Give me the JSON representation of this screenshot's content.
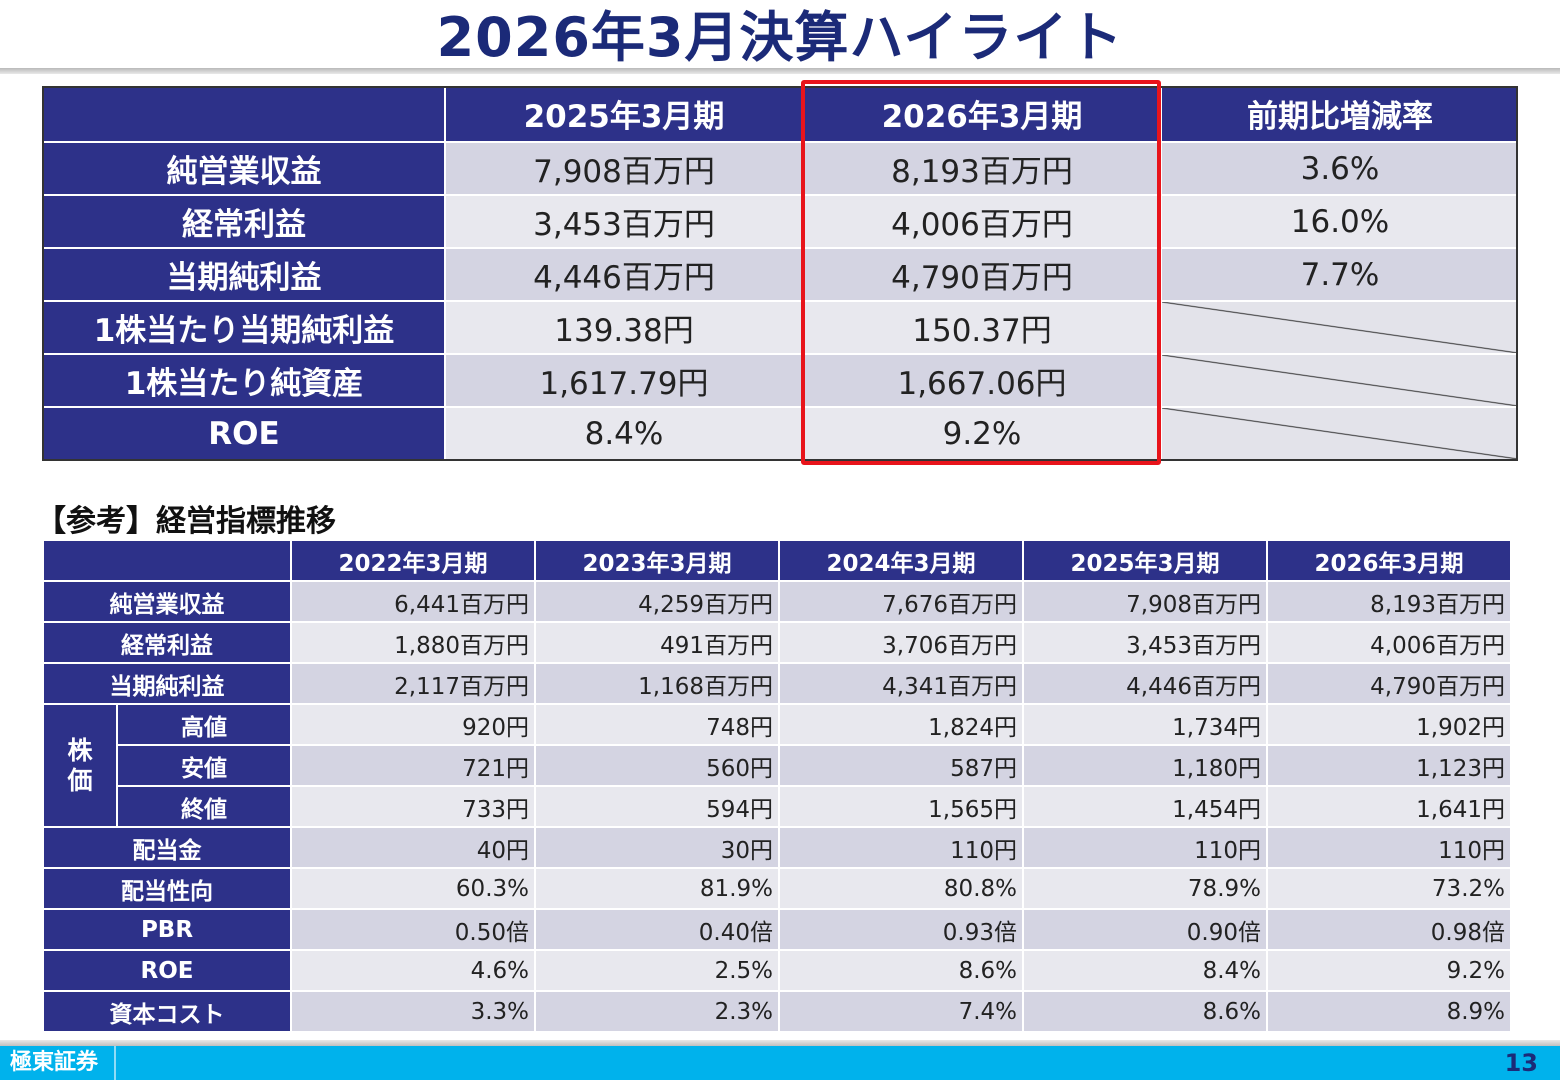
{
  "title": "2026年3月決算ハイライト",
  "highlight": {
    "headers": [
      "",
      "2025年3月期",
      "2026年3月期",
      "前期比増減率"
    ],
    "rows": [
      {
        "label": "純営業収益",
        "prev": "7,908百万円",
        "curr": "8,193百万円",
        "change": "3.6%"
      },
      {
        "label": "経常利益",
        "prev": "3,453百万円",
        "curr": "4,006百万円",
        "change": "16.0%"
      },
      {
        "label": "当期純利益",
        "prev": "4,446百万円",
        "curr": "4,790百万円",
        "change": "7.7%"
      },
      {
        "label": "1株当たり当期純利益",
        "prev": "139.38円",
        "curr": "150.37円",
        "change": ""
      },
      {
        "label": "1株当たり純資産",
        "prev": "1,617.79円",
        "curr": "1,667.06円",
        "change": ""
      },
      {
        "label": "ROE",
        "prev": "8.4%",
        "curr": "9.2%",
        "change": ""
      }
    ],
    "highlight_color": "#e8141b"
  },
  "reference": {
    "heading": "【参考】経営指標推移",
    "years": [
      "2022年3月期",
      "2023年3月期",
      "2024年3月期",
      "2025年3月期",
      "2026年3月期"
    ],
    "stock_label": "株価",
    "rows": [
      {
        "label": "純営業収益",
        "values": [
          "6,441百万円",
          "4,259百万円",
          "7,676百万円",
          "7,908百万円",
          "8,193百万円"
        ]
      },
      {
        "label": "経常利益",
        "values": [
          "1,880百万円",
          "491百万円",
          "3,706百万円",
          "3,453百万円",
          "4,006百万円"
        ]
      },
      {
        "label": "当期純利益",
        "values": [
          "2,117百万円",
          "1,168百万円",
          "4,341百万円",
          "4,446百万円",
          "4,790百万円"
        ]
      },
      {
        "label": "高値",
        "values": [
          "920円",
          "748円",
          "1,824円",
          "1,734円",
          "1,902円"
        ]
      },
      {
        "label": "安値",
        "values": [
          "721円",
          "560円",
          "587円",
          "1,180円",
          "1,123円"
        ]
      },
      {
        "label": "終値",
        "values": [
          "733円",
          "594円",
          "1,565円",
          "1,454円",
          "1,641円"
        ]
      },
      {
        "label": "配当金",
        "values": [
          "40円",
          "30円",
          "110円",
          "110円",
          "110円"
        ]
      },
      {
        "label": "配当性向",
        "values": [
          "60.3%",
          "81.9%",
          "80.8%",
          "78.9%",
          "73.2%"
        ]
      },
      {
        "label": "PBR",
        "values": [
          "0.50倍",
          "0.40倍",
          "0.93倍",
          "0.90倍",
          "0.98倍"
        ]
      },
      {
        "label": "ROE",
        "values": [
          "4.6%",
          "2.5%",
          "8.6%",
          "8.4%",
          "9.2%"
        ]
      },
      {
        "label": "資本コスト",
        "values": [
          "3.3%",
          "2.3%",
          "7.4%",
          "8.6%",
          "8.9%"
        ]
      }
    ]
  },
  "footer": {
    "brand": "極東証券",
    "page_number": "13",
    "bar_color": "#00b2ec"
  },
  "colors": {
    "header_navy": "#2d3189",
    "title_navy": "#1b2a78"
  }
}
